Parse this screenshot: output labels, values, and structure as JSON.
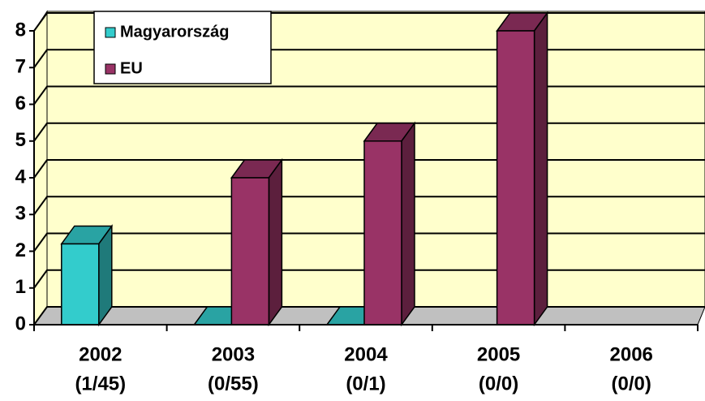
{
  "chart_data": {
    "type": "bar3d",
    "categories": [
      [
        "2002",
        "(1/45)"
      ],
      [
        "2003",
        "(0/55)"
      ],
      [
        "2004",
        "(0/1)"
      ],
      [
        "2005",
        "(0/0)"
      ],
      [
        "2006",
        "(0/0)"
      ]
    ],
    "series": [
      {
        "name": "Magyarország",
        "color": "#33cccc",
        "values": [
          2.2,
          0,
          0,
          null,
          null
        ]
      },
      {
        "name": "EU",
        "color": "#993366",
        "values": [
          null,
          4,
          5,
          8,
          null
        ]
      }
    ],
    "ylim": [
      0,
      8
    ],
    "yticks": [
      0,
      1,
      2,
      3,
      4,
      5,
      6,
      7,
      8
    ],
    "grid": true,
    "legend": "top-left"
  }
}
